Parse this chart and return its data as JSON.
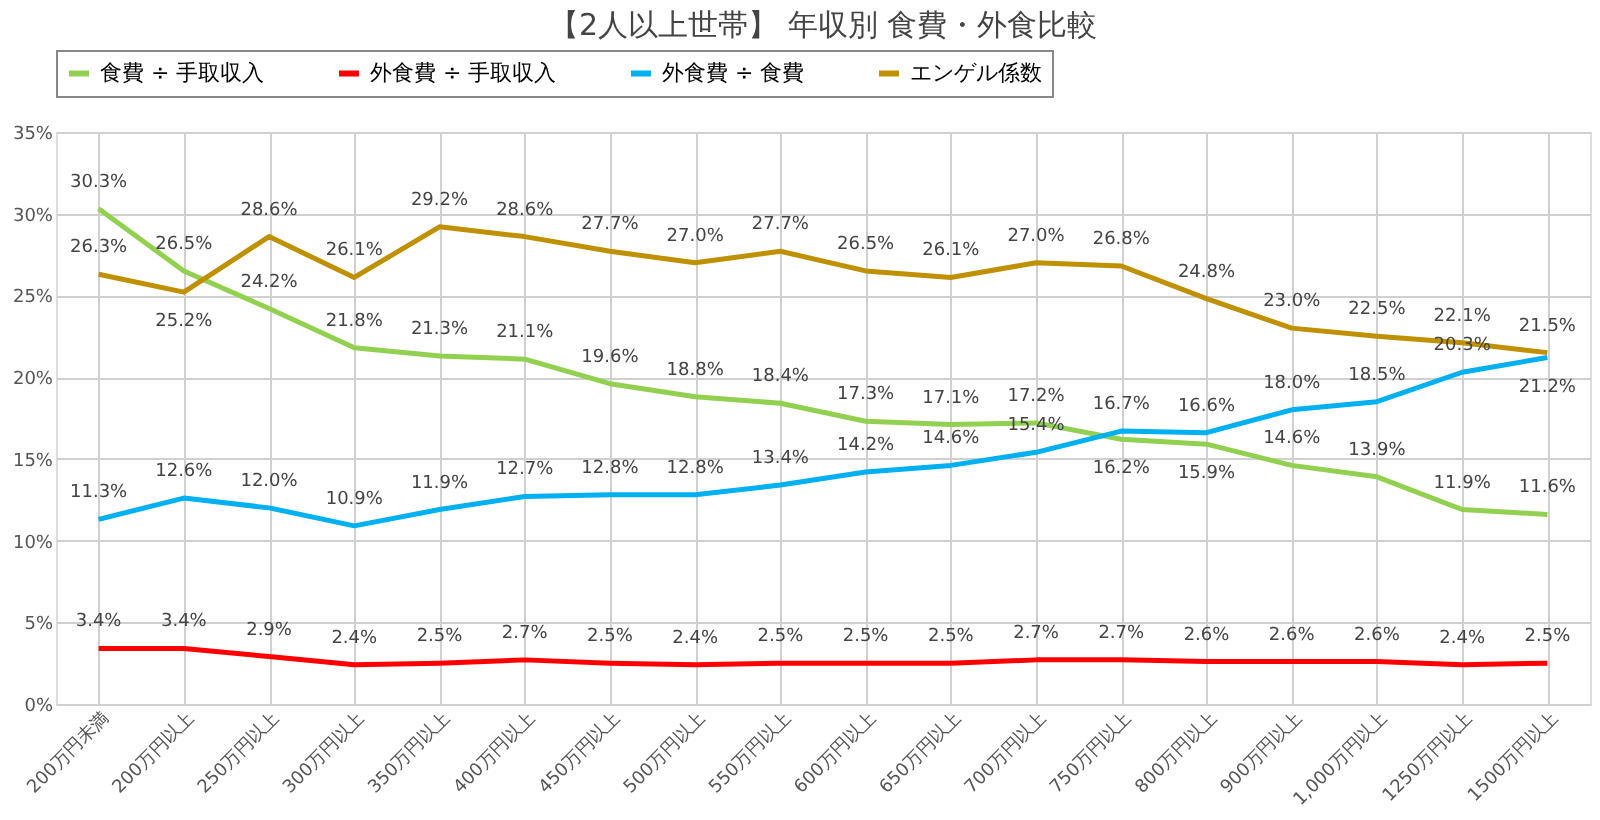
{
  "chart_data": {
    "type": "line",
    "title": "【2人以上世帯】 年収別 食費・外食比較",
    "categories": [
      "200万円未満",
      "200万円以上",
      "250万円以上",
      "300万円以上",
      "350万円以上",
      "400万円以上",
      "450万円以上",
      "500万円以上",
      "550万円以上",
      "600万円以上",
      "650万円以上",
      "700万円以上",
      "750万円以上",
      "800万円以上",
      "900万円以上",
      "1,000万円以上",
      "1250万円以上",
      "1500万円以上"
    ],
    "series": [
      {
        "name": "食費 ÷ 手取収入",
        "color": "#92d050",
        "values": [
          30.3,
          26.5,
          24.2,
          21.8,
          21.3,
          21.1,
          19.6,
          18.8,
          18.4,
          17.3,
          17.1,
          17.2,
          16.2,
          15.9,
          14.6,
          13.9,
          11.9,
          11.6
        ],
        "value_labels": [
          "30.3%",
          "26.5%",
          "24.2%",
          "21.8%",
          "21.3%",
          "21.1%",
          "19.6%",
          "18.8%",
          "18.4%",
          "17.3%",
          "17.1%",
          "17.2%",
          "16.2%",
          "15.9%",
          "14.6%",
          "13.9%",
          "11.9%",
          "11.6%"
        ]
      },
      {
        "name": "外食費 ÷ 手取収入",
        "color": "#ff0000",
        "values": [
          3.4,
          3.4,
          2.9,
          2.4,
          2.5,
          2.7,
          2.5,
          2.4,
          2.5,
          2.5,
          2.5,
          2.7,
          2.7,
          2.6,
          2.6,
          2.6,
          2.4,
          2.5
        ],
        "value_labels": [
          "3.4%",
          "3.4%",
          "2.9%",
          "2.4%",
          "2.5%",
          "2.7%",
          "2.5%",
          "2.4%",
          "2.5%",
          "2.5%",
          "2.5%",
          "2.7%",
          "2.7%",
          "2.6%",
          "2.6%",
          "2.6%",
          "2.4%",
          "2.5%"
        ]
      },
      {
        "name": "外食費 ÷ 食費",
        "color": "#00b0f0",
        "values": [
          11.3,
          12.6,
          12.0,
          10.9,
          11.9,
          12.7,
          12.8,
          12.8,
          13.4,
          14.2,
          14.6,
          15.4,
          16.7,
          16.6,
          18.0,
          18.5,
          20.3,
          21.2
        ],
        "value_labels": [
          "11.3%",
          "12.6%",
          "12.0%",
          "10.9%",
          "11.9%",
          "12.7%",
          "12.8%",
          "12.8%",
          "13.4%",
          "14.2%",
          "14.6%",
          "15.4%",
          "16.7%",
          "16.6%",
          "18.0%",
          "18.5%",
          "20.3%",
          "21.2%"
        ]
      },
      {
        "name": "エンゲル係数",
        "color": "#bf9000",
        "values": [
          26.3,
          25.2,
          28.6,
          26.1,
          29.2,
          28.6,
          27.7,
          27.0,
          27.7,
          26.5,
          26.1,
          27.0,
          26.8,
          24.8,
          23.0,
          22.5,
          22.1,
          21.5
        ],
        "value_labels": [
          "26.3%",
          "25.2%",
          "28.6%",
          "26.1%",
          "29.2%",
          "28.6%",
          "27.7%",
          "27.0%",
          "27.7%",
          "26.5%",
          "26.1%",
          "27.0%",
          "26.8%",
          "24.8%",
          "23.0%",
          "22.5%",
          "22.1%",
          "21.5%"
        ]
      }
    ],
    "ylim": [
      0,
      35
    ],
    "yticks": [
      {
        "value": 0,
        "label": "0%"
      },
      {
        "value": 5,
        "label": "5%"
      },
      {
        "value": 10,
        "label": "10%"
      },
      {
        "value": 15,
        "label": "15%"
      },
      {
        "value": 20,
        "label": "20%"
      },
      {
        "value": 25,
        "label": "25%"
      },
      {
        "value": 30,
        "label": "30%"
      },
      {
        "value": 35,
        "label": "35%"
      }
    ],
    "grid": true,
    "legend": "top",
    "marker": "none",
    "line_style": "solid"
  }
}
